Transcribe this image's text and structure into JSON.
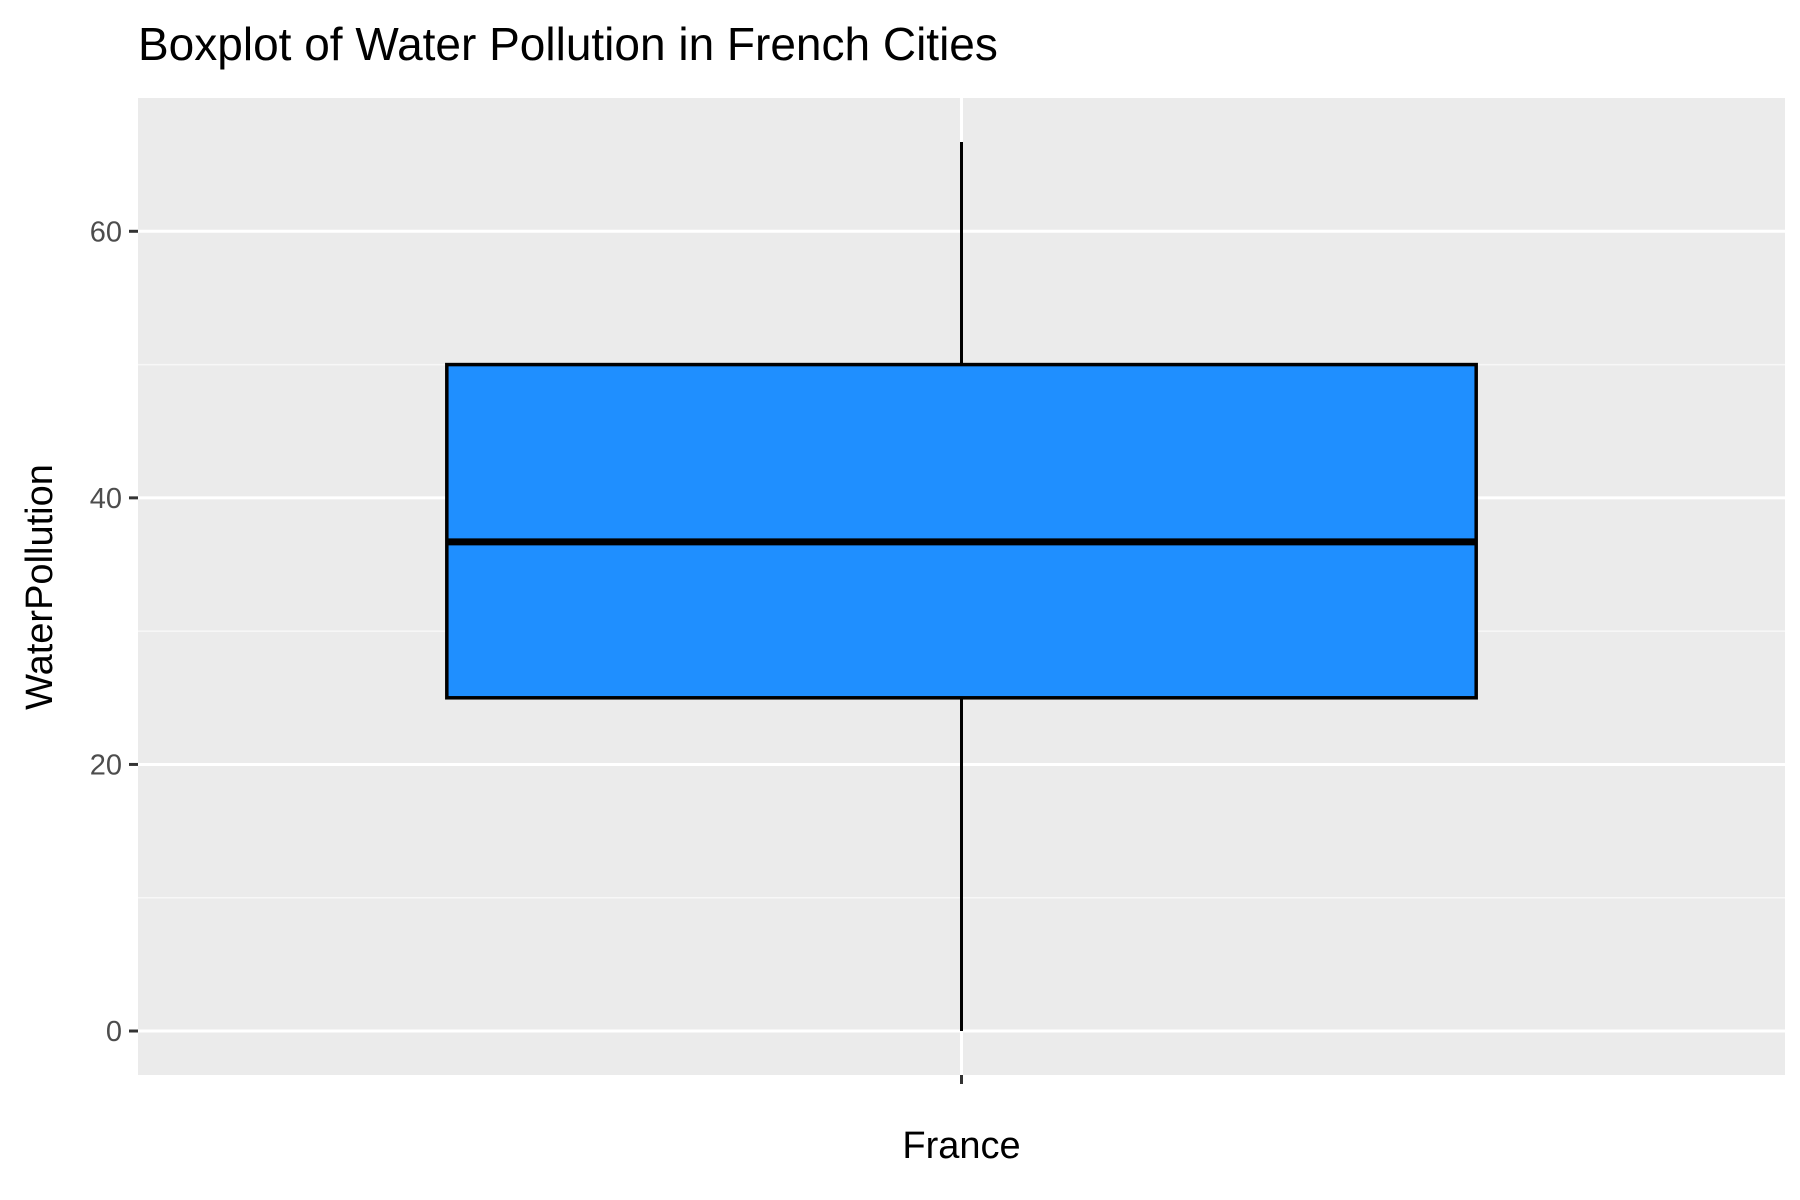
{
  "chart_data": {
    "type": "boxplot",
    "title": "Boxplot of Water Pollution in French Cities",
    "xlabel": "",
    "ylabel": "WaterPollution",
    "categories": [
      "France"
    ],
    "boxes": [
      {
        "category": "France",
        "min": 0,
        "q1": 25,
        "median": 36.7,
        "q3": 50,
        "max": 66.7
      }
    ],
    "ylim": [
      -3.3,
      70
    ],
    "y_ticks": [
      0,
      20,
      40,
      60
    ],
    "y_tick_labels": [
      "0",
      "20",
      "40",
      "60"
    ],
    "grid": true,
    "legend": "none",
    "colors": {
      "box_fill": "#1f8fff",
      "box_stroke": "#000000",
      "panel_background": "#ebebeb",
      "grid_major": "#ffffff",
      "grid_minor": "#f7f7f7"
    }
  }
}
